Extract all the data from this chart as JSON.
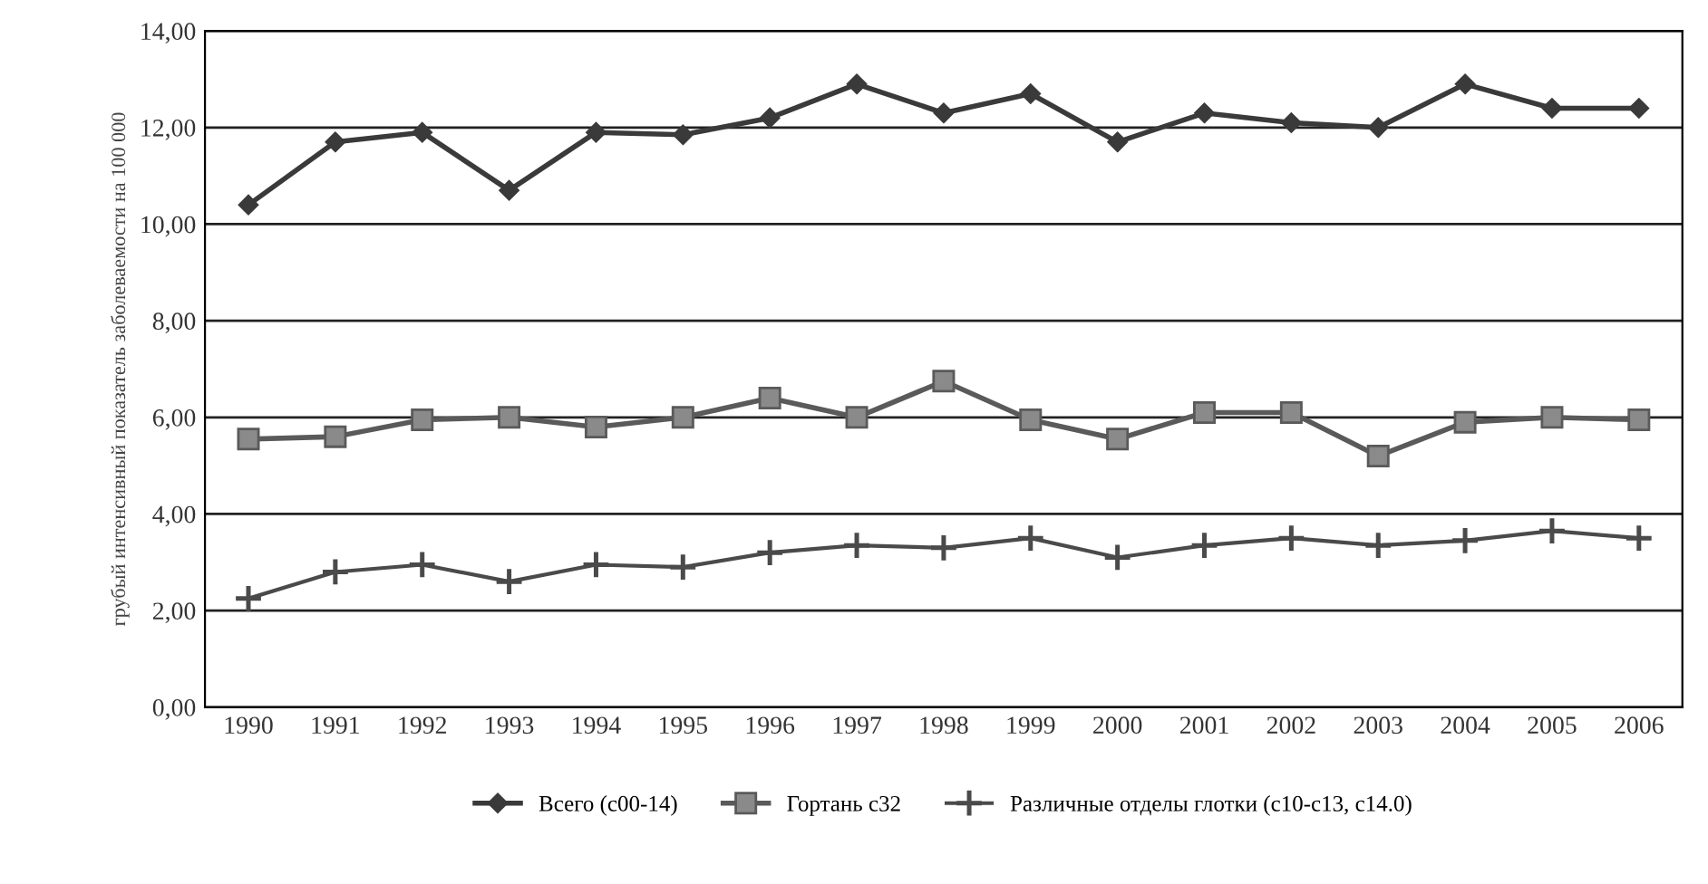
{
  "chart_data": {
    "type": "line",
    "ylabel": "грубый интенсивный показатель заболеваемости на 100 000",
    "categories": [
      "1990",
      "1991",
      "1992",
      "1993",
      "1994",
      "1995",
      "1996",
      "1997",
      "1998",
      "1999",
      "2000",
      "2001",
      "2002",
      "2003",
      "2004",
      "2005",
      "2006"
    ],
    "series": [
      {
        "name": "Всего (c00-14)",
        "color": "#3a3a3a",
        "marker": "diamond",
        "values": [
          10.4,
          11.7,
          11.9,
          10.7,
          11.9,
          11.85,
          12.2,
          12.9,
          12.3,
          12.7,
          11.7,
          12.3,
          12.1,
          12.0,
          12.9,
          12.4,
          12.4
        ]
      },
      {
        "name": "Гортань c32",
        "color": "#5a5a5a",
        "marker": "square",
        "values": [
          5.55,
          5.6,
          5.95,
          6.0,
          5.8,
          6.0,
          6.4,
          6.0,
          6.75,
          5.95,
          5.55,
          6.1,
          6.1,
          5.2,
          5.9,
          6.0,
          5.95
        ]
      },
      {
        "name": "Различные отделы глотки (c10-c13, c14.0)",
        "color": "#4a4a4a",
        "marker": "cross",
        "values": [
          2.25,
          2.8,
          2.95,
          2.6,
          2.95,
          2.9,
          3.2,
          3.35,
          3.3,
          3.5,
          3.1,
          3.35,
          3.5,
          3.35,
          3.45,
          3.65,
          3.5
        ]
      }
    ],
    "ylim": [
      0,
      14
    ],
    "yticks": [
      {
        "value": 0,
        "label": "0,00"
      },
      {
        "value": 2,
        "label": "2,00"
      },
      {
        "value": 4,
        "label": "4,00"
      },
      {
        "value": 6,
        "label": "6,00"
      },
      {
        "value": 8,
        "label": "8,00"
      },
      {
        "value": 10,
        "label": "10,00"
      },
      {
        "value": 12,
        "label": "12,00"
      },
      {
        "value": 14,
        "label": "14,00"
      }
    ],
    "grid": "y",
    "legend": "bottom",
    "line_style": "solid"
  }
}
